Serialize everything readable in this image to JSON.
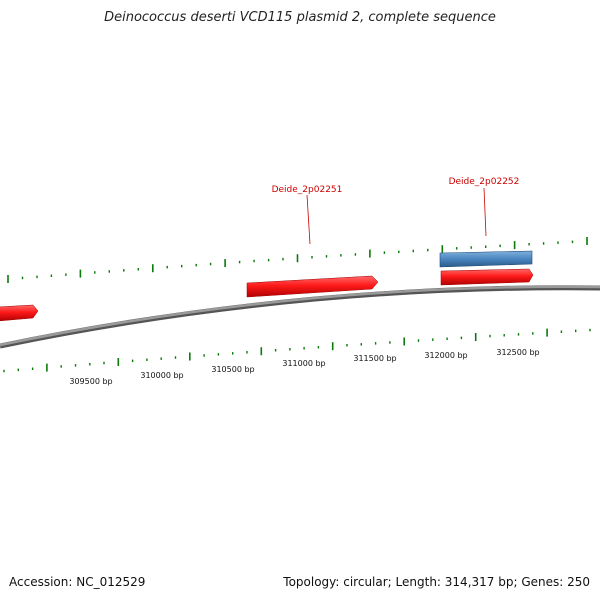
{
  "title": "Deinococcus deserti VCD115 plasmid 2, complete sequence",
  "footer": {
    "accession": "Accession: NC_012529",
    "summary": "Topology: circular; Length: 314,317 bp; Genes: 250"
  },
  "colors": {
    "backbone": "#808080",
    "forward_gene": "#ff1a1a",
    "reverse_gene": "#4a86c0",
    "tick": "#0a7a0a",
    "gene_label": "#cc0000"
  },
  "scale": {
    "ticks": [
      {
        "label": "309500 bp"
      },
      {
        "label": "310000 bp"
      },
      {
        "label": "310500 bp"
      },
      {
        "label": "311000 bp"
      },
      {
        "label": "311500 bp"
      },
      {
        "label": "312000 bp"
      },
      {
        "label": "312500 bp"
      }
    ]
  },
  "genes": [
    {
      "name": "",
      "strand": "+",
      "track": "inner"
    },
    {
      "name": "Deide_2p02251",
      "strand": "+",
      "track": "inner"
    },
    {
      "name": "Deide_2p02252",
      "strand": "-",
      "track": "outer"
    },
    {
      "name": "",
      "strand": "+",
      "track": "inner"
    }
  ]
}
